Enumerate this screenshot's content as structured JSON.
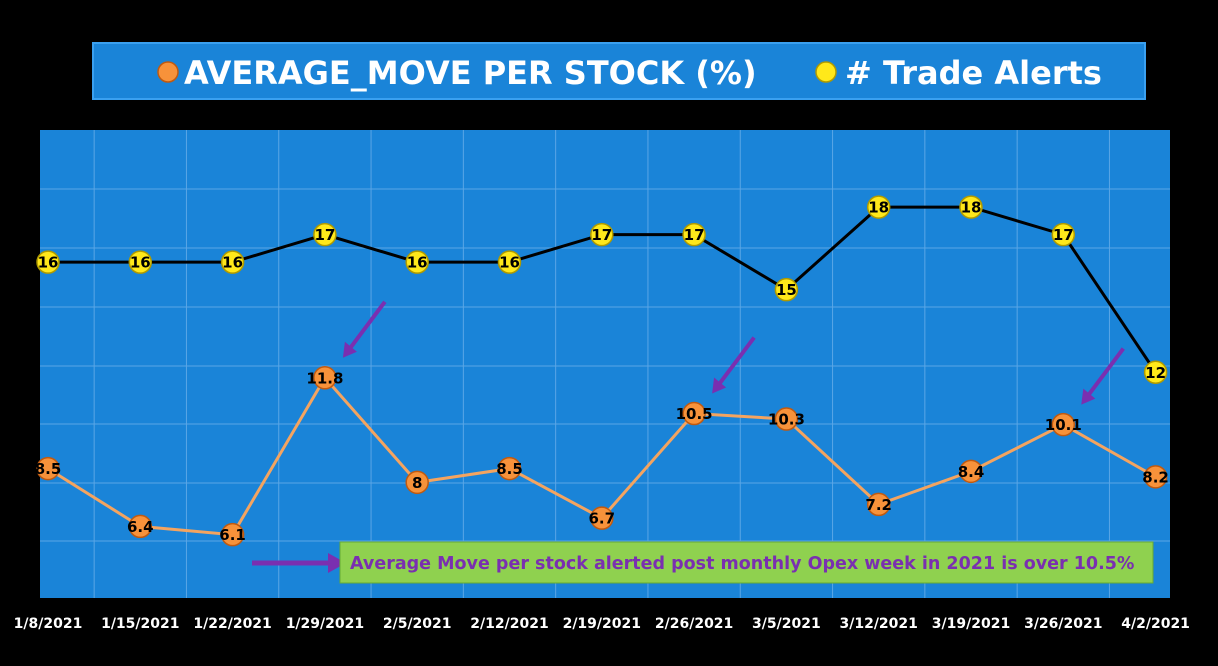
{
  "colors": {
    "background": "#000000",
    "plot_area": "#1a84d8",
    "grid": "#5aa6e6",
    "avg_move_marker": "#f7923a",
    "avg_move_line": "#f4a460",
    "alerts_marker": "#ffe81a",
    "alerts_line": "#000000",
    "arrow": "#7a2fb0",
    "annotation_fill": "#8fd14f",
    "annotation_text": "#7a2fb0"
  },
  "legend": {
    "avg_move_label": "AVERAGE_MOVE PER STOCK (%)",
    "alerts_label": "# Trade Alerts"
  },
  "annotation": {
    "text": "Average Move per stock alerted post monthly Opex week in 2021 is over 10.5%"
  },
  "chart_data": {
    "type": "line",
    "categories": [
      "1/8/2021",
      "1/15/2021",
      "1/22/2021",
      "1/29/2021",
      "2/5/2021",
      "2/12/2021",
      "2/19/2021",
      "2/26/2021",
      "3/5/2021",
      "3/12/2021",
      "3/19/2021",
      "3/26/2021",
      "4/2/2021"
    ],
    "series": [
      {
        "name": "AVERAGE_MOVE PER STOCK (%)",
        "values": [
          8.5,
          6.4,
          6.1,
          11.8,
          8,
          8.5,
          6.7,
          10.5,
          10.3,
          7.2,
          8.4,
          10.1,
          8.2
        ]
      },
      {
        "name": "# Trade Alerts",
        "values": [
          16,
          16,
          16,
          17,
          16,
          16,
          17,
          17,
          15,
          18,
          18,
          17,
          12
        ]
      }
    ],
    "highlighted_categories": [
      "1/29/2021",
      "2/26/2021",
      "3/26/2021"
    ],
    "ylim": [
      3.8,
      20.8
    ],
    "grid": true,
    "legend_position": "top"
  }
}
